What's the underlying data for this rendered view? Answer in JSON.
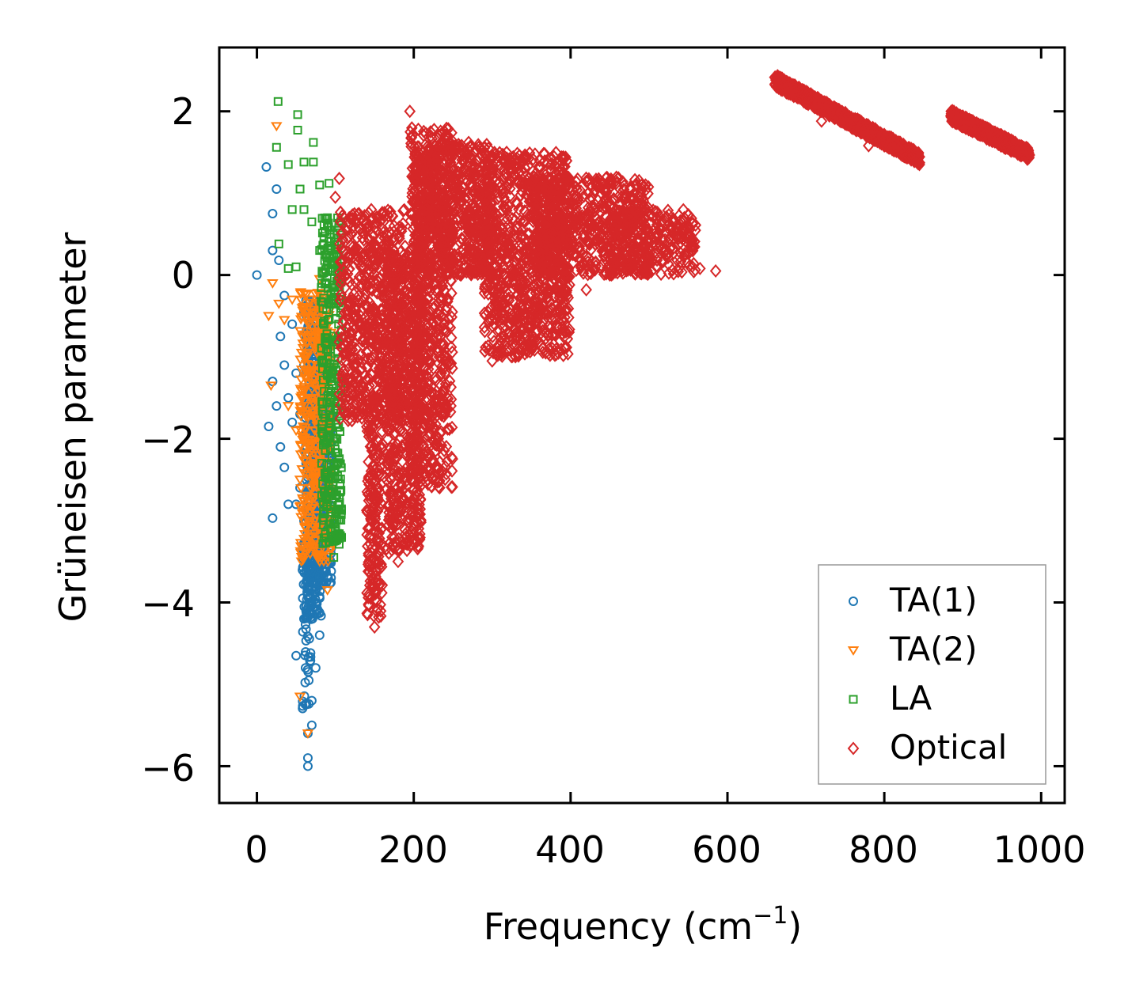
{
  "chart_data": {
    "type": "scatter",
    "xlabel": "Frequency (cm",
    "xlabel_sup": "−1",
    "xlabel_end": ")",
    "ylabel": "Grüneisen parameter",
    "xlim": [
      -48,
      1030
    ],
    "ylim": [
      -6.45,
      2.78
    ],
    "x_ticks": [
      0,
      200,
      400,
      600,
      800,
      1000
    ],
    "y_ticks": [
      2,
      0,
      -2,
      -4,
      -6
    ],
    "x_tick_labels": [
      "0",
      "200",
      "400",
      "600",
      "800",
      "1000"
    ],
    "y_tick_labels": [
      "2",
      "0",
      "−2",
      "−4",
      "−6"
    ],
    "legend_position": "lower-right",
    "series": [
      {
        "name": "TA(1)",
        "marker": "circle",
        "color": "#1f77b4",
        "points": [
          [
            0,
            0
          ],
          [
            12,
            1.32
          ],
          [
            20,
            0.75
          ],
          [
            25,
            1.05
          ],
          [
            20,
            0.3
          ],
          [
            28,
            0.18
          ],
          [
            15,
            -1.85
          ],
          [
            20,
            -1.3
          ],
          [
            25,
            -1.6
          ],
          [
            30,
            -2.1
          ],
          [
            35,
            -2.35
          ],
          [
            40,
            -2.8
          ],
          [
            20,
            -2.97
          ],
          [
            30,
            -0.75
          ],
          [
            35,
            -1.1
          ],
          [
            40,
            -1.5
          ],
          [
            45,
            -1.8
          ],
          [
            35,
            -0.25
          ],
          [
            45,
            -0.6
          ],
          [
            50,
            -1.2
          ],
          [
            55,
            -1.7
          ],
          [
            55,
            -2.6
          ],
          [
            50,
            -2.8
          ],
          [
            60,
            -0.45
          ],
          [
            60,
            -1.1
          ],
          [
            60,
            -3.0
          ],
          [
            50,
            -4.65
          ],
          [
            62,
            -4.8
          ],
          [
            65,
            -5.6
          ],
          [
            65,
            -5.9
          ],
          [
            65,
            -6.0
          ],
          [
            70,
            -5.5
          ],
          [
            70,
            -5.2
          ],
          [
            75,
            -4.8
          ],
          [
            80,
            -4.4
          ],
          [
            75,
            -4.0
          ],
          [
            70,
            -3.6
          ],
          [
            60,
            -3.3
          ],
          [
            65,
            -3.8
          ],
          [
            60,
            -4.2
          ]
        ],
        "clusters": [
          [
            62,
            82,
            -4.2,
            -0.3,
            480
          ],
          [
            70,
            95,
            -3.8,
            -1.5,
            260
          ],
          [
            58,
            70,
            -5.3,
            -3.2,
            60
          ]
        ]
      },
      {
        "name": "TA(2)",
        "marker": "triangle-down",
        "color": "#ff7f0e",
        "points": [
          [
            25,
            1.82
          ],
          [
            20,
            -0.1
          ],
          [
            28,
            -0.35
          ],
          [
            15,
            -0.5
          ],
          [
            35,
            -0.55
          ],
          [
            45,
            -0.3
          ],
          [
            18,
            -1.35
          ],
          [
            40,
            -1.6
          ],
          [
            50,
            -1.9
          ],
          [
            55,
            -2.5
          ],
          [
            60,
            -3.0
          ],
          [
            55,
            -5.15
          ],
          [
            65,
            -5.6
          ],
          [
            90,
            -3.85
          ],
          [
            80,
            -3.5
          ],
          [
            80,
            -0.05
          ],
          [
            85,
            0.05
          ]
        ],
        "clusters": [
          [
            55,
            95,
            -3.5,
            -0.2,
            420
          ]
        ]
      },
      {
        "name": "LA",
        "marker": "square",
        "color": "#2ca02c",
        "points": [
          [
            27,
            2.12
          ],
          [
            52,
            1.96
          ],
          [
            25,
            1.56
          ],
          [
            52,
            1.77
          ],
          [
            72,
            1.62
          ],
          [
            40,
            1.35
          ],
          [
            60,
            1.38
          ],
          [
            72,
            1.38
          ],
          [
            55,
            1.05
          ],
          [
            80,
            1.1
          ],
          [
            92,
            1.12
          ],
          [
            45,
            0.8
          ],
          [
            60,
            0.8
          ],
          [
            28,
            0.38
          ],
          [
            70,
            0.65
          ],
          [
            90,
            0.7
          ],
          [
            50,
            0.1
          ],
          [
            80,
            0.3
          ],
          [
            40,
            0.08
          ],
          [
            95,
            -0.3
          ],
          [
            100,
            -0.8
          ],
          [
            100,
            -1.6
          ],
          [
            102,
            -2.3
          ],
          [
            105,
            -2.8
          ],
          [
            100,
            -3.2
          ],
          [
            98,
            -3.45
          ],
          [
            95,
            -3.1
          ]
        ],
        "clusters": [
          [
            82,
            108,
            -3.3,
            0.7,
            320
          ]
        ]
      },
      {
        "name": "Optical",
        "marker": "diamond",
        "color": "#d62728",
        "points": [
          [
            195,
            2.0
          ],
          [
            105,
            1.18
          ],
          [
            100,
            0.95
          ],
          [
            270,
            1.62
          ],
          [
            585,
            0.05
          ],
          [
            565,
            0.08
          ],
          [
            555,
            0.35
          ],
          [
            545,
            0.7
          ],
          [
            530,
            0.65
          ],
          [
            510,
            0.7
          ],
          [
            450,
            0.0
          ],
          [
            420,
            -0.18
          ],
          [
            300,
            -1.05
          ],
          [
            150,
            -4.3
          ],
          [
            180,
            -3.5
          ],
          [
            780,
            1.58
          ],
          [
            720,
            1.88
          ]
        ],
        "clusters": [
          [
            105,
            190,
            -1.8,
            0.8,
            650
          ],
          [
            140,
            160,
            -4.2,
            -1.5,
            200
          ],
          [
            165,
            210,
            -3.4,
            0.3,
            550
          ],
          [
            195,
            250,
            -2.6,
            1.8,
            700
          ],
          [
            200,
            300,
            0.0,
            1.6,
            650
          ],
          [
            290,
            400,
            -1.0,
            1.5,
            950
          ],
          [
            350,
            500,
            0.0,
            1.2,
            600
          ],
          [
            450,
            560,
            0.0,
            0.8,
            250
          ]
        ],
        "bands": [
          [
            660,
            845,
            2.38,
            1.42,
            15,
            900
          ],
          [
            885,
            985,
            1.95,
            1.47,
            14,
            600
          ]
        ]
      }
    ]
  }
}
